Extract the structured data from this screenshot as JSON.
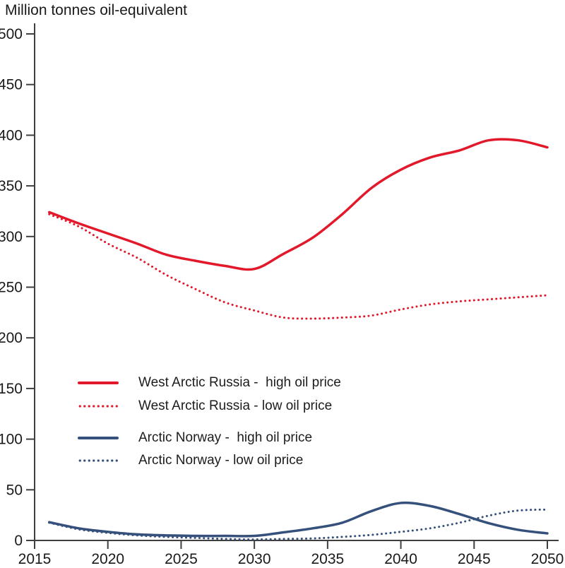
{
  "title": "Million tonnes oil-equivalent",
  "colors": {
    "red": "#e2182b",
    "blue": "#35507b",
    "axis": "#3f3f3f",
    "text": "#1a1a1a"
  },
  "legend": {
    "items": [
      {
        "label": "West Arctic Russia -  high oil price",
        "series_id": "west-arctic-russia-high"
      },
      {
        "label": "West Arctic Russia - low oil price",
        "series_id": "west-arctic-russia-low"
      },
      {
        "label": "Arctic Norway -  high oil price",
        "series_id": "arctic-norway-high"
      },
      {
        "label": "Arctic Norway - low oil price",
        "series_id": "arctic-norway-low"
      }
    ]
  },
  "chart_data": {
    "type": "line",
    "title": "Million tonnes oil-equivalent",
    "xlabel": "",
    "ylabel": "Million tonnes oil-equivalent",
    "xlim": [
      2015,
      2050
    ],
    "ylim": [
      0,
      500
    ],
    "x_ticks": [
      2015,
      2020,
      2025,
      2030,
      2035,
      2040,
      2045,
      2050
    ],
    "y_ticks": [
      0,
      50,
      100,
      150,
      200,
      250,
      300,
      350,
      400,
      450,
      500
    ],
    "grid": false,
    "legend_position": "inside-left-middle",
    "x": [
      2016,
      2018,
      2020,
      2022,
      2024,
      2026,
      2028,
      2030,
      2032,
      2034,
      2036,
      2038,
      2040,
      2042,
      2044,
      2046,
      2048,
      2050
    ],
    "series": [
      {
        "id": "west-arctic-russia-high",
        "name": "West Arctic Russia - high oil price",
        "color": "#e2182b",
        "style": "solid",
        "values": [
          324,
          313,
          303,
          293,
          282,
          276,
          271,
          268,
          283,
          299,
          322,
          348,
          366,
          378,
          385,
          395,
          395,
          388
        ]
      },
      {
        "id": "west-arctic-russia-low",
        "name": "West Arctic Russia - low oil price",
        "color": "#e2182b",
        "style": "dotted",
        "values": [
          322,
          310,
          293,
          279,
          262,
          248,
          235,
          227,
          220,
          219,
          220,
          222,
          228,
          233,
          236,
          238,
          240,
          242
        ]
      },
      {
        "id": "arctic-norway-high",
        "name": "Arctic Norway - high oil price",
        "color": "#35507b",
        "style": "solid",
        "values": [
          18,
          12,
          8.5,
          6,
          5,
          4.5,
          4.5,
          4.5,
          8,
          12,
          17.5,
          29,
          37,
          34,
          26,
          17,
          10.5,
          7
        ]
      },
      {
        "id": "arctic-norway-low",
        "name": "Arctic Norway - low oil price",
        "color": "#35507b",
        "style": "dotted",
        "values": [
          17.5,
          11,
          7.5,
          5,
          3.5,
          2.5,
          1.5,
          1,
          1.5,
          2,
          3.5,
          5.5,
          8.5,
          12,
          17.5,
          24.5,
          29.5,
          30.5
        ]
      }
    ]
  }
}
